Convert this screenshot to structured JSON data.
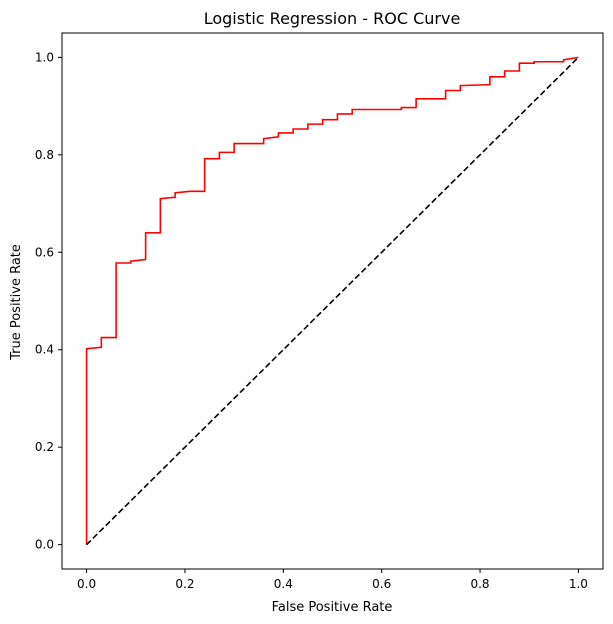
{
  "chart_data": {
    "type": "line",
    "title": "Logistic Regression - ROC Curve",
    "xlabel": "False Positive Rate",
    "ylabel": "True Positive Rate",
    "xlim": [
      -0.05,
      1.05
    ],
    "ylim": [
      -0.05,
      1.05
    ],
    "xticks": [
      0.0,
      0.2,
      0.4,
      0.6,
      0.8,
      1.0
    ],
    "yticks": [
      0.0,
      0.2,
      0.4,
      0.6,
      0.8,
      1.0
    ],
    "xtick_labels": [
      "0.0",
      "0.2",
      "0.4",
      "0.6",
      "0.8",
      "1.0"
    ],
    "ytick_labels": [
      "0.0",
      "0.2",
      "0.4",
      "0.6",
      "0.8",
      "1.0"
    ],
    "grid": false,
    "legend": "none",
    "series": [
      {
        "color": "#ff0000",
        "style": "solid-step",
        "x": [
          0.0,
          0.0,
          0.0,
          0.03,
          0.03,
          0.06,
          0.06,
          0.09,
          0.09,
          0.12,
          0.12,
          0.15,
          0.15,
          0.18,
          0.18,
          0.21,
          0.21,
          0.24,
          0.24,
          0.27,
          0.27,
          0.3,
          0.3,
          0.36,
          0.36,
          0.39,
          0.39,
          0.42,
          0.42,
          0.45,
          0.45,
          0.48,
          0.48,
          0.51,
          0.51,
          0.54,
          0.54,
          0.64,
          0.64,
          0.67,
          0.67,
          0.73,
          0.73,
          0.76,
          0.76,
          0.82,
          0.82,
          0.85,
          0.85,
          0.88,
          0.88,
          0.91,
          0.91,
          0.97,
          0.97,
          1.0
        ],
        "y": [
          0.0,
          0.397,
          0.402,
          0.405,
          0.425,
          0.425,
          0.578,
          0.578,
          0.582,
          0.585,
          0.64,
          0.64,
          0.71,
          0.713,
          0.722,
          0.725,
          0.725,
          0.725,
          0.792,
          0.792,
          0.805,
          0.805,
          0.823,
          0.823,
          0.833,
          0.837,
          0.845,
          0.845,
          0.853,
          0.853,
          0.863,
          0.863,
          0.872,
          0.872,
          0.884,
          0.884,
          0.893,
          0.893,
          0.897,
          0.897,
          0.915,
          0.915,
          0.932,
          0.932,
          0.942,
          0.944,
          0.96,
          0.96,
          0.972,
          0.972,
          0.988,
          0.988,
          0.991,
          0.991,
          0.995,
          1.0
        ]
      },
      {
        "color": "#000000",
        "style": "dashed",
        "x": [
          0.0,
          1.0
        ],
        "y": [
          0.0,
          1.0
        ]
      }
    ]
  }
}
